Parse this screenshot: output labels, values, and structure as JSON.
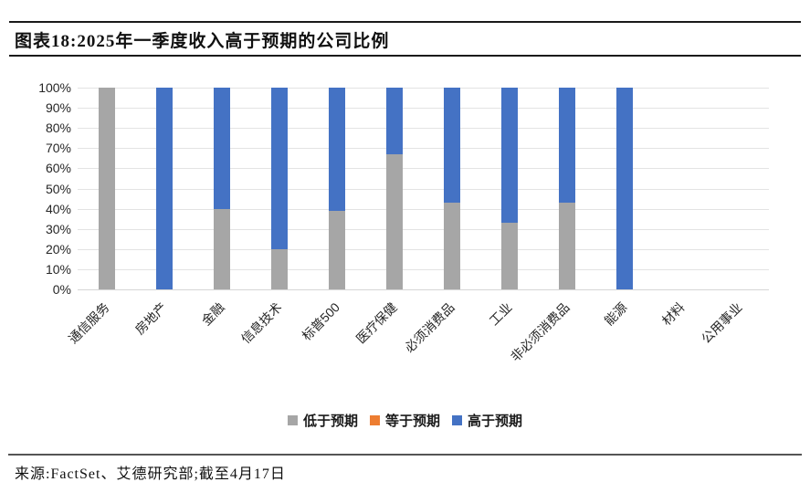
{
  "header": {
    "title": "图表18:2025年一季度收入高于预期的公司比例"
  },
  "chart_data": {
    "type": "bar",
    "stacked": true,
    "title": "图表18:2025年一季度收入高于预期的公司比例",
    "categories": [
      "通信服务",
      "房地产",
      "金融",
      "信息技术",
      "标普500",
      "医疗保健",
      "必须消费品",
      "工业",
      "非必须消费品",
      "能源",
      "材料",
      "公用事业"
    ],
    "series": [
      {
        "name": "低于预期",
        "key": "below-expectations",
        "color": "#a6a6a6",
        "values": [
          100,
          0,
          40,
          20,
          39,
          67,
          43,
          33,
          43,
          0,
          0,
          0
        ]
      },
      {
        "name": "等于预期",
        "key": "equal-to-expectations",
        "color": "#ed7d31",
        "values": [
          0,
          0,
          0,
          0,
          0,
          0,
          0,
          0,
          0,
          0,
          0,
          0
        ]
      },
      {
        "name": "高于预期",
        "key": "above-expectations",
        "color": "#4472c4",
        "values": [
          0,
          100,
          60,
          80,
          61,
          33,
          57,
          67,
          57,
          100,
          0,
          0
        ]
      }
    ],
    "ylim": [
      0,
      100
    ],
    "ytick_step": 10,
    "ytick_labels_top_to_bottom": [
      "100%",
      "90%",
      "80%",
      "70%",
      "60%",
      "50%",
      "40%",
      "30%",
      "20%",
      "10%",
      "0%"
    ],
    "grid": true,
    "legend_position": "bottom",
    "xlabel": "",
    "ylabel": ""
  },
  "colors": {
    "below": "#a6a6a6",
    "equal": "#ed7d31",
    "above": "#4472c4",
    "gridline": "#e3e3e3",
    "rule_dark": "#1a1a1a",
    "rule_footer": "#555555"
  },
  "footer": {
    "source": "来源:FactSet、艾德研究部;截至4月17日"
  }
}
